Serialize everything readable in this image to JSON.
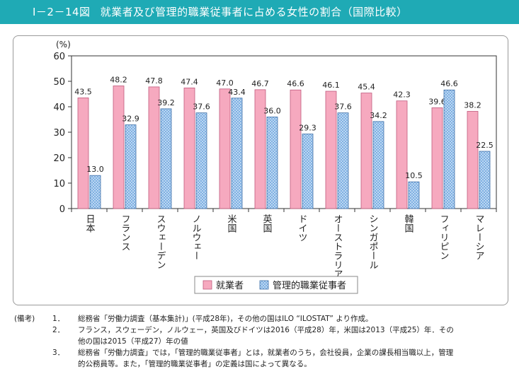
{
  "header": {
    "figure_number": "I－2－14図",
    "title": "就業者及び管理的職業従事者に占める女性の割合（国際比較）"
  },
  "colors": {
    "title_bg": "#1faab5",
    "employed": "#f6a9bf",
    "managerial": "#bcd7f2",
    "managerial_pattern": "#7fb0e2"
  },
  "chart_data": {
    "type": "bar",
    "unit_label": "(%)",
    "ylim": [
      0,
      60
    ],
    "yticks": [
      0,
      10,
      20,
      30,
      40,
      50,
      60
    ],
    "categories": [
      "日本",
      "フランス",
      "スウェーデン",
      "ノルウェー",
      "米国",
      "英国",
      "ドイツ",
      "オーストラリア",
      "シンガポール",
      "韓国",
      "フィリピン",
      "マレーシア"
    ],
    "series": [
      {
        "name": "就業者",
        "values": [
          43.5,
          48.2,
          47.8,
          47.4,
          47.0,
          46.7,
          46.6,
          46.1,
          45.4,
          42.3,
          39.6,
          38.2
        ]
      },
      {
        "name": "管理的職業従事者",
        "values": [
          13.0,
          32.9,
          39.2,
          37.6,
          43.4,
          36.0,
          29.3,
          37.6,
          34.2,
          10.5,
          46.6,
          22.5
        ]
      }
    ],
    "value_labels": [
      [
        "43.5",
        "48.2",
        "47.8",
        "47.4",
        "47.0",
        "46.7",
        "46.6",
        "46.1",
        "45.4",
        "42.3",
        "39.6",
        "38.2"
      ],
      [
        "13.0",
        "32.9",
        "39.2",
        "37.6",
        "43.4",
        "36.0",
        "29.3",
        "37.6",
        "34.2",
        "10.5",
        "46.6",
        "22.5"
      ]
    ],
    "legend_position": "bottom-center",
    "grid": false
  },
  "notes": {
    "label": "(備考)",
    "items": [
      {
        "index": "1．",
        "lines": [
          "総務省「労働力調査（基本集計)」(平成28年)，その他の国はILO “ILOSTAT” より作成。"
        ]
      },
      {
        "index": "2．",
        "lines": [
          "フランス，スウェーデン，ノルウェー，英国及びドイツは2016（平成28）年，米国は2013（平成25）年．その",
          "他の国は2015（平成27）年の値"
        ]
      },
      {
        "index": "3．",
        "lines": [
          "総務省「労働力調査」では，「管理的職業従事者」とは，就業者のうち，会社役員，企業の課長相当職以上，管理",
          "的公務員等。また，「管理的職業従事者」の定義は国によって異なる。"
        ]
      }
    ]
  }
}
